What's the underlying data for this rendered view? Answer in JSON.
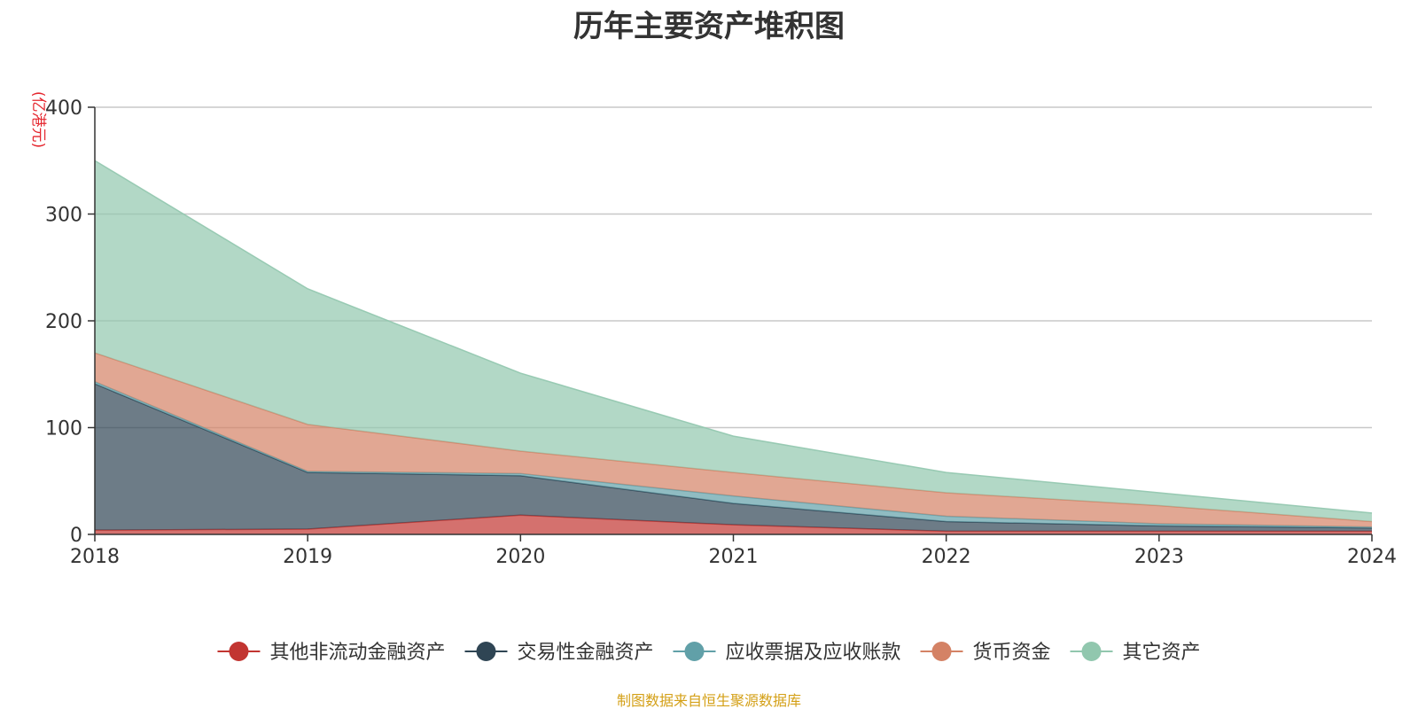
{
  "title": "历年主要资产堆积图",
  "source_note": "制图数据来自恒生聚源数据库",
  "chart_data": {
    "type": "area",
    "stacked": true,
    "title": "历年主要资产堆积图",
    "ylabel": "(亿港元)",
    "x": [
      "2018",
      "2019",
      "2020",
      "2021",
      "2022",
      "2023",
      "2024"
    ],
    "ylim": [
      0,
      400
    ],
    "yticks": [
      0,
      100,
      200,
      300,
      400
    ],
    "grid": true,
    "legend_position": "bottom",
    "series": [
      {
        "name": "其他非流动金融资产",
        "color": "#c23531",
        "values": [
          4,
          5,
          18,
          9,
          3,
          3,
          3
        ]
      },
      {
        "name": "交易性金融资产",
        "color": "#2f4554",
        "values": [
          137,
          53,
          37,
          20,
          9,
          5,
          3
        ]
      },
      {
        "name": "应收票据及应收账款",
        "color": "#61a0a8",
        "values": [
          2,
          1,
          2,
          7,
          5,
          2,
          1
        ]
      },
      {
        "name": "货币资金",
        "color": "#d48265",
        "values": [
          27,
          44,
          21,
          22,
          22,
          17,
          5
        ]
      },
      {
        "name": "其它资产",
        "color": "#91c7ae",
        "values": [
          180,
          127,
          73,
          34,
          19,
          12,
          8
        ]
      }
    ]
  }
}
